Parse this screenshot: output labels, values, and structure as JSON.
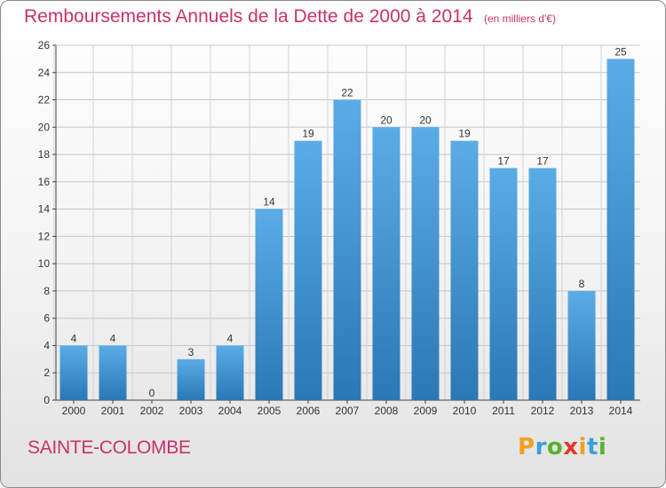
{
  "title": "Remboursements Annuels de la Dette de 2000 à 2014",
  "unit_note": "(en milliers d'€)",
  "commune": "SAINTE-COLOMBE",
  "logo": {
    "letters": [
      "P",
      "r",
      "o",
      "x",
      "i",
      "t",
      "i"
    ],
    "colors": [
      "#f0a020",
      "#3aa0dc",
      "#5cb030",
      "#e23a2a",
      "#f0a020",
      "#3aa0dc",
      "#5cb030"
    ]
  },
  "colors": {
    "bar_top": "#5aace6",
    "bar_bottom": "#2a78b6",
    "accent": "#c5336d"
  },
  "chart_data": {
    "type": "bar",
    "title": "Remboursements Annuels de la Dette de 2000 à 2014",
    "categories": [
      "2000",
      "2001",
      "2002",
      "2003",
      "2004",
      "2005",
      "2006",
      "2007",
      "2008",
      "2009",
      "2010",
      "2011",
      "2012",
      "2013",
      "2014"
    ],
    "values": [
      4,
      4,
      0,
      3,
      4,
      14,
      19,
      22,
      20,
      20,
      19,
      17,
      17,
      8,
      25
    ],
    "ylim": [
      0,
      26
    ],
    "yticks": [
      0,
      2,
      4,
      6,
      8,
      10,
      12,
      14,
      16,
      18,
      20,
      22,
      24,
      26
    ],
    "xlabel": "",
    "ylabel": "",
    "grid": true
  }
}
